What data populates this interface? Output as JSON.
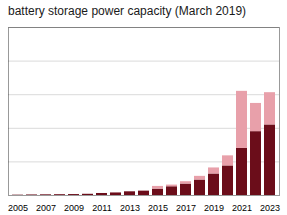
{
  "chart_data": {
    "type": "bar",
    "title": "battery storage power capacity (March 2019)",
    "categories": [
      "2005",
      null,
      "2007",
      null,
      "2009",
      null,
      "2011",
      null,
      "2013",
      null,
      "2015",
      null,
      "2017",
      null,
      "2019",
      null,
      "2021",
      null,
      "2023"
    ],
    "series": [
      {
        "color": "#6b0d1a",
        "values": [
          5,
          8,
          10,
          12,
          14,
          18,
          30,
          38,
          55,
          65,
          95,
          130,
          170,
          230,
          320,
          440,
          700,
          950,
          1050
        ]
      },
      {
        "color": "#e8a0aa",
        "values": [
          0,
          0,
          0,
          0,
          0,
          0,
          0,
          0,
          0,
          0,
          40,
          25,
          35,
          55,
          90,
          150,
          850,
          420,
          480
        ]
      }
    ],
    "stacked": true,
    "ylim": [
      0,
      2500
    ],
    "yticks": [
      500,
      1000,
      1500,
      2000,
      2500
    ],
    "grid": true,
    "tick_labels": "x"
  }
}
